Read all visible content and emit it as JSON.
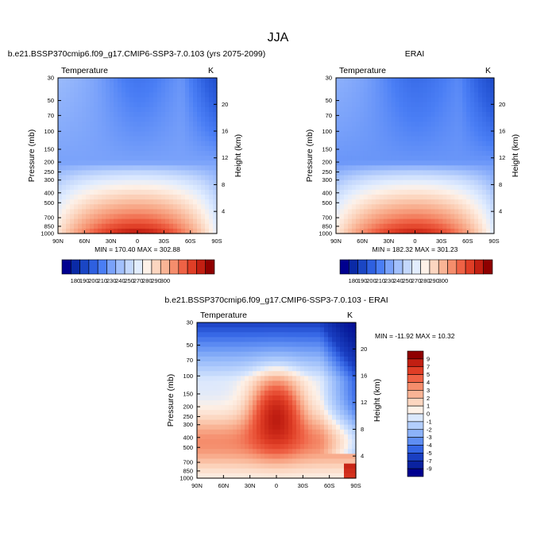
{
  "figure": {
    "title": "JJA"
  },
  "chart_data": [
    {
      "type": "heatmap",
      "title": "b.e21.BSSP370cmip6.f09_g17.CMIP6-SSP3-7.0.103 (yrs 2075-2099)",
      "subtitle": "Temperature",
      "units": "K",
      "ylabel": "Pressure (mb)",
      "y2label": "Height (km)",
      "x_ticks": [
        "90N",
        "60N",
        "30N",
        "0",
        "30S",
        "60S",
        "90S"
      ],
      "y_ticks": [
        "30",
        "50",
        "70",
        "100",
        "150",
        "200",
        "250",
        "300",
        "400",
        "500",
        "700",
        "850",
        "1000"
      ],
      "y2_ticks": [
        "20",
        "16",
        "12",
        "8",
        "4"
      ],
      "y_scale": "log",
      "xlim": [
        "90N",
        "90S"
      ],
      "ylim": [
        1000,
        30
      ],
      "stats": "MIN = 170.40   MAX = 302.88",
      "colorbar": {
        "labels": [
          "180",
          "190",
          "200",
          "210",
          "230",
          "240",
          "250",
          "270",
          "280",
          "290",
          "300"
        ],
        "colors": [
          "#00008f",
          "#0a2aa6",
          "#1a46c4",
          "#2e60e0",
          "#4a7ef5",
          "#7aa2fa",
          "#a2c0fc",
          "#c4d8fd",
          "#e2edfe",
          "#fdf1e8",
          "#fcd6c0",
          "#f9b495",
          "#f58d6c",
          "#ef6245",
          "#e03e26",
          "#c21f12",
          "#8f0000"
        ]
      }
    },
    {
      "type": "heatmap",
      "title": "ERAI",
      "subtitle": "Temperature",
      "units": "K",
      "ylabel": "Pressure (mb)",
      "y2label": "Height (km)",
      "x_ticks": [
        "90N",
        "60N",
        "30N",
        "0",
        "30S",
        "60S",
        "90S"
      ],
      "y_ticks": [
        "30",
        "50",
        "70",
        "100",
        "150",
        "200",
        "250",
        "300",
        "400",
        "500",
        "700",
        "850",
        "1000"
      ],
      "y2_ticks": [
        "20",
        "16",
        "12",
        "8",
        "4"
      ],
      "y_scale": "log",
      "xlim": [
        "90N",
        "90S"
      ],
      "ylim": [
        1000,
        30
      ],
      "stats": "MIN = 182.32   MAX = 301.23",
      "colorbar": {
        "labels": [
          "180",
          "190",
          "200",
          "210",
          "230",
          "240",
          "250",
          "270",
          "280",
          "290",
          "300"
        ],
        "colors": [
          "#00008f",
          "#0a2aa6",
          "#1a46c4",
          "#2e60e0",
          "#4a7ef5",
          "#7aa2fa",
          "#a2c0fc",
          "#c4d8fd",
          "#e2edfe",
          "#fdf1e8",
          "#fcd6c0",
          "#f9b495",
          "#f58d6c",
          "#ef6245",
          "#e03e26",
          "#c21f12",
          "#8f0000"
        ]
      }
    },
    {
      "type": "heatmap",
      "title": "b.e21.BSSP370cmip6.f09_g17.CMIP6-SSP3-7.0.103 - ERAI",
      "subtitle": "Temperature",
      "units": "K",
      "ylabel": "Pressure (mb)",
      "y2label": "Height (km)",
      "x_ticks": [
        "90N",
        "60N",
        "30N",
        "0",
        "30S",
        "60S",
        "90S"
      ],
      "y_ticks": [
        "30",
        "50",
        "70",
        "100",
        "150",
        "200",
        "250",
        "300",
        "400",
        "500",
        "700",
        "850",
        "1000"
      ],
      "y2_ticks": [
        "20",
        "16",
        "12",
        "8",
        "4"
      ],
      "y_scale": "log",
      "xlim": [
        "90N",
        "90S"
      ],
      "ylim": [
        1000,
        30
      ],
      "stats": "MIN = -11.92  MAX =  10.32",
      "colorbar": {
        "labels": [
          "9",
          "7",
          "5",
          "4",
          "3",
          "2",
          "1",
          "0",
          "-1",
          "-2",
          "-3",
          "-4",
          "-5",
          "-7",
          "-9"
        ],
        "colors": [
          "#8f0000",
          "#c21f12",
          "#e03e26",
          "#ef6245",
          "#f58d6c",
          "#f9b495",
          "#fcd6c0",
          "#fdf1e8",
          "#dbe8fd",
          "#b3cefc",
          "#8cb2f9",
          "#5f8ef3",
          "#3566e5",
          "#1a3fc2",
          "#0a22a0",
          "#00008f"
        ]
      }
    }
  ]
}
